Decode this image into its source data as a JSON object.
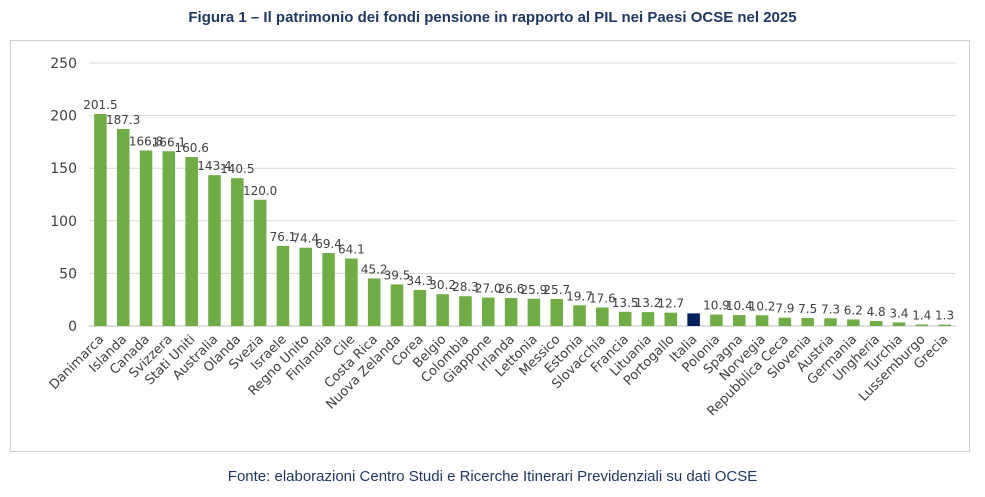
{
  "chart_data": {
    "type": "bar",
    "title": "Figura 1 – Il patrimonio dei fondi pensione in rapporto al PIL nei Paesi OCSE nel 2025",
    "xlabel": "",
    "ylabel": "",
    "ylim": [
      0,
      250
    ],
    "yticks": [
      0,
      50,
      100,
      150,
      200,
      250
    ],
    "grid": true,
    "legend": "none",
    "categories": [
      "Danimarca",
      "Islanda",
      "Canada",
      "Svizzera",
      "Stati Uniti",
      "Australia",
      "Olanda",
      "Svezia",
      "Israele",
      "Regno Unito",
      "Finlandia",
      "Cile",
      "Costa Rica",
      "Nuova Zelanda",
      "Corea",
      "Belgio",
      "Colombia",
      "Giappone",
      "Irlanda",
      "Lettonia",
      "Messico",
      "Estonia",
      "Slovacchia",
      "Francia",
      "Lituania",
      "Portogallo",
      "Italia",
      "Polonia",
      "Spagna",
      "Norvegia",
      "Repubblica Ceca",
      "Slovenia",
      "Austria",
      "Germania",
      "Ungheria",
      "Turchia",
      "Lussemburgo",
      "Grecia"
    ],
    "values": [
      201.5,
      187.3,
      166.8,
      166.1,
      160.6,
      143.4,
      140.5,
      120.0,
      76.1,
      74.4,
      69.4,
      64.1,
      45.2,
      39.5,
      34.3,
      30.2,
      28.3,
      27.0,
      26.6,
      25.9,
      25.7,
      19.7,
      17.6,
      13.5,
      13.2,
      12.7,
      12.0,
      10.9,
      10.4,
      10.2,
      7.9,
      7.5,
      7.3,
      6.2,
      4.8,
      3.4,
      1.4,
      1.3
    ],
    "labels": [
      "201.5",
      "187.3",
      "166.8",
      "166.1",
      "160.6",
      "143.4",
      "140.5",
      "120.0",
      "76.1",
      "74.4",
      "69.4",
      "64.1",
      "45.2",
      "39.5",
      "34.3",
      "30.2",
      "28.3",
      "27.0",
      "26.6",
      "25.9",
      "25.7",
      "19.7",
      "17.6",
      "13.5",
      "13.2",
      "12.7",
      "",
      "10.9",
      "10.4",
      "10.2",
      "7.9",
      "7.5",
      "7.3",
      "6.2",
      "4.8",
      "3.4",
      "1.4",
      "1.3"
    ],
    "colors": {
      "default": "#70ad47",
      "highlight": "#002060",
      "grid": "#d9d9d9",
      "axis": "#bfbfbf"
    },
    "highlight_category": "Italia",
    "source": "Fonte: elaborazioni Centro Studi e Ricerche Itinerari Previdenziali su dati OCSE"
  }
}
